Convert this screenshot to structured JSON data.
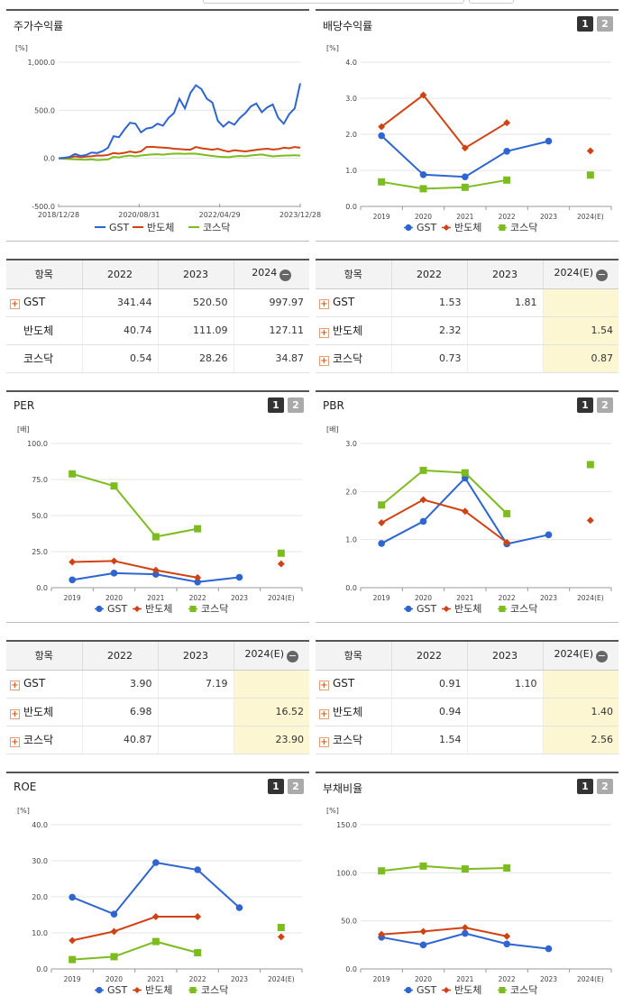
{
  "ui": {
    "plus_icon": "plus-square-icon",
    "minus_icon": "minus-circle-icon",
    "accent_red": "#e06020",
    "highlight": "#fdf6d2"
  },
  "colors": {
    "GST": "#2e65d0",
    "반도체": "#d04214",
    "코스닥": "#7cbc1e"
  },
  "legend": [
    "GST",
    "반도체",
    "코스닥"
  ],
  "page_buttons": [
    "1",
    "2"
  ],
  "charts": [
    {
      "id": "stock_return",
      "title": "주가수익률",
      "type": "line",
      "unit": "[%]",
      "yticks": [
        "1,000.0",
        "500.0",
        "0.0",
        "-500.0"
      ],
      "ylim": [
        -500,
        1000
      ],
      "xticks": [
        "2018/12/28",
        "2020/08/31",
        "2022/04/29",
        "2023/12/28"
      ],
      "series": [
        {
          "name": "GST",
          "values": [
            0,
            5,
            15,
            45,
            25,
            35,
            60,
            55,
            75,
            110,
            230,
            220,
            300,
            370,
            360,
            270,
            310,
            320,
            360,
            340,
            420,
            470,
            620,
            520,
            680,
            760,
            720,
            620,
            580,
            390,
            330,
            380,
            350,
            420,
            470,
            540,
            570,
            480,
            530,
            560,
            420,
            360,
            460,
            520,
            780
          ]
        },
        {
          "name": "반도체",
          "values": [
            0,
            5,
            8,
            20,
            12,
            18,
            22,
            30,
            28,
            35,
            55,
            48,
            58,
            70,
            60,
            72,
            118,
            120,
            115,
            112,
            108,
            100,
            96,
            92,
            90,
            118,
            105,
            98,
            90,
            100,
            82,
            70,
            85,
            78,
            72,
            80,
            88,
            95,
            100,
            92,
            96,
            110,
            105,
            118,
            111
          ]
        },
        {
          "name": "코스닥",
          "values": [
            0,
            -5,
            -8,
            -10,
            -12,
            -15,
            -10,
            -18,
            -15,
            -12,
            15,
            10,
            22,
            28,
            20,
            30,
            35,
            40,
            42,
            38,
            45,
            48,
            50,
            46,
            50,
            48,
            40,
            32,
            25,
            18,
            15,
            12,
            20,
            25,
            22,
            30,
            35,
            40,
            30,
            20,
            25,
            28,
            30,
            32,
            28
          ]
        }
      ]
    },
    {
      "id": "dividend",
      "title": "배당수익률",
      "type": "line",
      "unit": "[%]",
      "yticks": [
        "4.0",
        "3.0",
        "2.0",
        "1.0",
        "0.0"
      ],
      "ylim": [
        0,
        4
      ],
      "categories": [
        "2019",
        "2020",
        "2021",
        "2022",
        "2023",
        "2024(E)"
      ],
      "series": [
        {
          "name": "GST",
          "values": [
            1.96,
            0.88,
            0.82,
            1.53,
            1.81,
            null
          ]
        },
        {
          "name": "반도체",
          "values": [
            2.21,
            3.09,
            1.62,
            2.32,
            null,
            1.54
          ]
        },
        {
          "name": "코스닥",
          "values": [
            0.68,
            0.49,
            0.53,
            0.73,
            null,
            0.87
          ]
        }
      ]
    },
    {
      "id": "per",
      "title": "PER",
      "type": "line",
      "unit": "[배]",
      "yticks": [
        "100.0",
        "75.0",
        "50.0",
        "25.0",
        "0.0"
      ],
      "ylim": [
        0,
        100
      ],
      "categories": [
        "2019",
        "2020",
        "2021",
        "2022",
        "2023",
        "2024(E)"
      ],
      "series": [
        {
          "name": "GST",
          "values": [
            5.4,
            10.1,
            9.3,
            3.9,
            7.19,
            null
          ]
        },
        {
          "name": "반도체",
          "values": [
            17.8,
            18.5,
            12.1,
            6.98,
            null,
            16.52
          ]
        },
        {
          "name": "코스닥",
          "values": [
            78.9,
            70.5,
            35.3,
            40.87,
            null,
            23.9
          ]
        }
      ]
    },
    {
      "id": "pbr",
      "title": "PBR",
      "type": "line",
      "unit": "[배]",
      "yticks": [
        "3.0",
        "2.0",
        "1.0",
        "0.0"
      ],
      "ylim": [
        0,
        3
      ],
      "categories": [
        "2019",
        "2020",
        "2021",
        "2022",
        "2023",
        "2024(E)"
      ],
      "series": [
        {
          "name": "GST",
          "values": [
            0.92,
            1.38,
            2.28,
            0.91,
            1.1,
            null
          ]
        },
        {
          "name": "반도체",
          "values": [
            1.35,
            1.83,
            1.59,
            0.94,
            null,
            1.4
          ]
        },
        {
          "name": "코스닥",
          "values": [
            1.72,
            2.44,
            2.39,
            1.54,
            null,
            2.56
          ]
        }
      ]
    },
    {
      "id": "roe",
      "title": "ROE",
      "type": "line",
      "unit": "[%]",
      "yticks": [
        "40.0",
        "30.0",
        "20.0",
        "10.0",
        "0.0"
      ],
      "ylim": [
        0,
        40
      ],
      "categories": [
        "2019",
        "2020",
        "2021",
        "2022",
        "2023",
        "2024(E)"
      ],
      "series": [
        {
          "name": "GST",
          "values": [
            19.9,
            15.2,
            29.5,
            27.5,
            17.0,
            null
          ]
        },
        {
          "name": "반도체",
          "values": [
            7.9,
            10.4,
            14.5,
            14.5,
            null,
            8.9
          ]
        },
        {
          "name": "코스닥",
          "values": [
            2.6,
            3.4,
            7.6,
            4.5,
            null,
            11.5
          ]
        }
      ]
    },
    {
      "id": "debt",
      "title": "부채비율",
      "type": "line",
      "unit": "[%]",
      "yticks": [
        "150.0",
        "100.0",
        "50.0",
        "0.0"
      ],
      "ylim": [
        0,
        150
      ],
      "categories": [
        "2019",
        "2020",
        "2021",
        "2022",
        "2023",
        "2024(E)"
      ],
      "series": [
        {
          "name": "GST",
          "values": [
            33,
            25,
            37,
            26,
            21,
            null
          ]
        },
        {
          "name": "반도체",
          "values": [
            36,
            39,
            43,
            34,
            null,
            null
          ]
        },
        {
          "name": "코스닥",
          "values": [
            102,
            107,
            104,
            105,
            null,
            null
          ]
        }
      ]
    }
  ],
  "tables": [
    {
      "id": "stock_return_table",
      "header": [
        "항목",
        "2022",
        "2023",
        "2024"
      ],
      "rows": [
        {
          "name": "GST",
          "plus": true,
          "values": [
            "341.44",
            "520.50",
            "997.97"
          ]
        },
        {
          "name": "반도체",
          "plus": false,
          "values": [
            "40.74",
            "111.09",
            "127.11"
          ]
        },
        {
          "name": "코스닥",
          "plus": false,
          "values": [
            "0.54",
            "28.26",
            "34.87"
          ]
        }
      ]
    },
    {
      "id": "dividend_table",
      "header": [
        "항목",
        "2022",
        "2023",
        "2024(E)"
      ],
      "rows": [
        {
          "name": "GST",
          "plus": true,
          "values": [
            "1.53",
            "1.81",
            ""
          ]
        },
        {
          "name": "반도체",
          "plus": true,
          "values": [
            "2.32",
            "",
            "1.54"
          ]
        },
        {
          "name": "코스닥",
          "plus": true,
          "values": [
            "0.73",
            "",
            "0.87"
          ]
        }
      ]
    },
    {
      "id": "per_table",
      "header": [
        "항목",
        "2022",
        "2023",
        "2024(E)"
      ],
      "rows": [
        {
          "name": "GST",
          "plus": true,
          "values": [
            "3.90",
            "7.19",
            ""
          ]
        },
        {
          "name": "반도체",
          "plus": true,
          "values": [
            "6.98",
            "",
            "16.52"
          ]
        },
        {
          "name": "코스닥",
          "plus": true,
          "values": [
            "40.87",
            "",
            "23.90"
          ]
        }
      ]
    },
    {
      "id": "pbr_table",
      "header": [
        "항목",
        "2022",
        "2023",
        "2024(E)"
      ],
      "rows": [
        {
          "name": "GST",
          "plus": true,
          "values": [
            "0.91",
            "1.10",
            ""
          ]
        },
        {
          "name": "반도체",
          "plus": true,
          "values": [
            "0.94",
            "",
            "1.40"
          ]
        },
        {
          "name": "코스닥",
          "plus": true,
          "values": [
            "1.54",
            "",
            "2.56"
          ]
        }
      ]
    }
  ]
}
